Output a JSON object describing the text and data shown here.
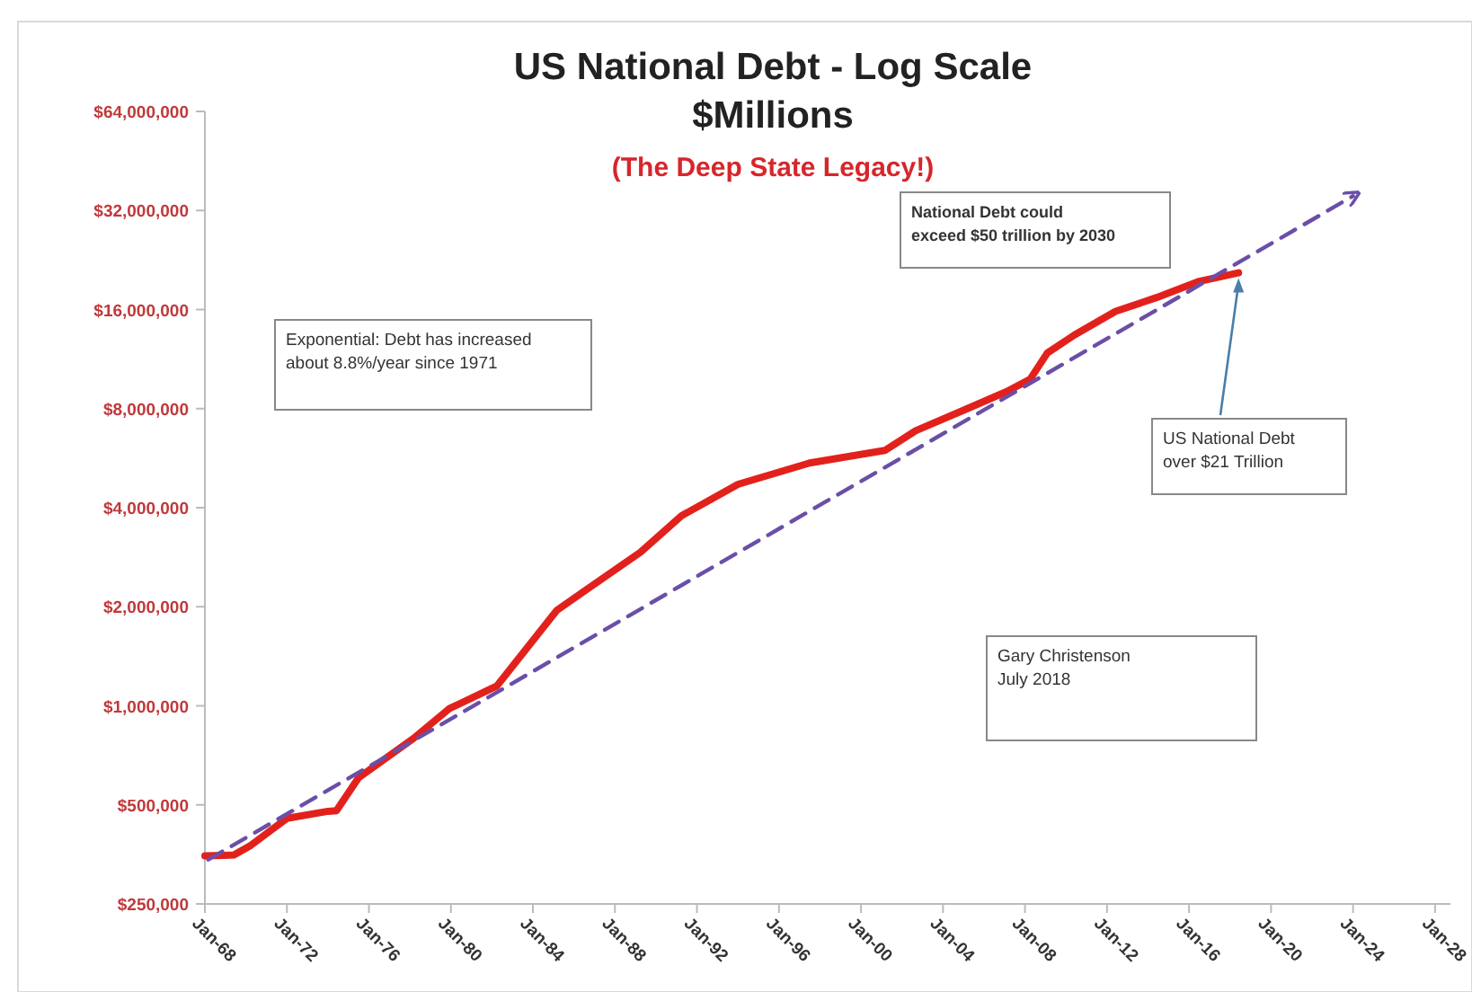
{
  "chart_data": {
    "type": "line",
    "title": "US National Debt - Log Scale",
    "subtitle": "$Millions",
    "annotations": [
      "(The Deep State Legacy!)",
      "Exponential: Debt has increased\nabout 8.8%/year since 1971",
      "National Debt could\nexceed $50 trillion by 2030",
      {
        "text": "US National Debt\nover $21 Trillion",
        "x": "2018-06",
        "y": 20700000
      },
      "Gary Christenson\nJuly 2018"
    ],
    "log": "y",
    "grid": false,
    "legend": false,
    "marker": "none",
    "xlim": [
      "1968-01",
      "2028-10"
    ],
    "xticks": [
      {
        "value": "1968-01",
        "label": "Jan-68"
      },
      {
        "value": "1972-01",
        "label": "Jan-72"
      },
      {
        "value": "1976-01",
        "label": "Jan-76"
      },
      {
        "value": "1980-01",
        "label": "Jan-80"
      },
      {
        "value": "1984-01",
        "label": "Jan-84"
      },
      {
        "value": "1988-01",
        "label": "Jan-88"
      },
      {
        "value": "1992-01",
        "label": "Jan-92"
      },
      {
        "value": "1996-01",
        "label": "Jan-96"
      },
      {
        "value": "2000-01",
        "label": "Jan-00"
      },
      {
        "value": "2004-01",
        "label": "Jan-04"
      },
      {
        "value": "2008-01",
        "label": "Jan-08"
      },
      {
        "value": "2012-01",
        "label": "Jan-12"
      },
      {
        "value": "2016-01",
        "label": "Jan-16"
      },
      {
        "value": "2020-01",
        "label": "Jan-20"
      },
      {
        "value": "2024-01",
        "label": "Jan-24"
      },
      {
        "value": "2028-01",
        "label": "Jan-28"
      }
    ],
    "ylim": [
      250000,
      64000000
    ],
    "yticks": [
      {
        "value": 250000,
        "label": "$250,000"
      },
      {
        "value": 500000,
        "label": "$500,000"
      },
      {
        "value": 1000000,
        "label": "$1,000,000"
      },
      {
        "value": 2000000,
        "label": "$2,000,000"
      },
      {
        "value": 4000000,
        "label": "$4,000,000"
      },
      {
        "value": 8000000,
        "label": "$8,000,000"
      },
      {
        "value": 16000000,
        "label": "$16,000,000"
      },
      {
        "value": 32000000,
        "label": "$32,000,000"
      },
      {
        "value": 64000000,
        "label": "$64,000,000"
      }
    ],
    "series": [
      {
        "color": "#e3211c",
        "line_style": "solid",
        "x": [
          "1968-01",
          "1969-06",
          "1970-04",
          "1972-01",
          "1974-01",
          "1974-06",
          "1975-07",
          "1978-03",
          "1979-12",
          "1982-04",
          "1985-03",
          "1986-07",
          "1989-04",
          "1991-04",
          "1994-01",
          "1997-07",
          "2001-03",
          "2002-09",
          "2005-02",
          "2007-02",
          "2008-04",
          "2009-02",
          "2010-06",
          "2012-06",
          "2014-06",
          "2016-07",
          "2018-06"
        ],
        "values": [
          350000,
          352000,
          377000,
          455000,
          478000,
          480000,
          605000,
          795000,
          980000,
          1150000,
          1950000,
          2230000,
          2930000,
          3780000,
          4710000,
          5470000,
          5970000,
          6850000,
          7950000,
          9000000,
          9820000,
          11800000,
          13400000,
          15800000,
          17400000,
          19500000,
          20700000
        ]
      },
      {
        "color": "#6a4fa8",
        "line_style": "dashed",
        "x": [
          "1968-03",
          "2024-01"
        ],
        "values": [
          341000,
          35400000
        ]
      }
    ]
  }
}
